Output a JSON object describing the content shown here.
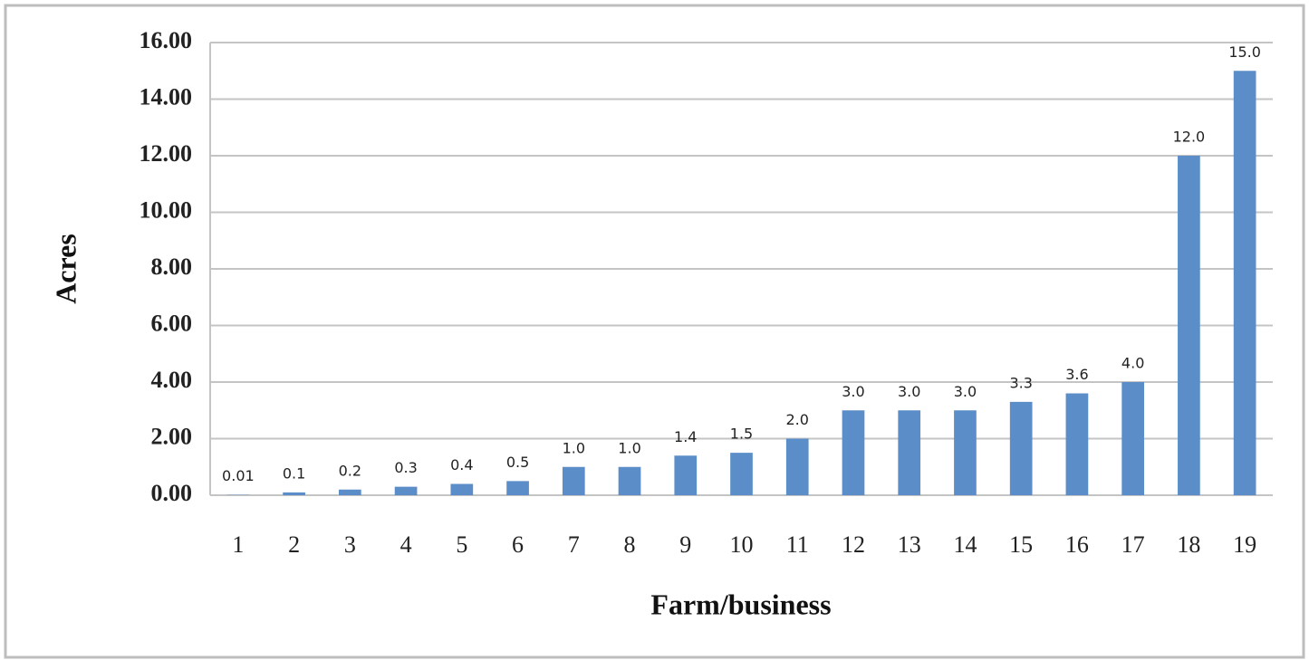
{
  "chart_data": {
    "type": "bar",
    "x_label": "Farm/business",
    "y_label": "Acres",
    "categories": [
      "1",
      "2",
      "3",
      "4",
      "5",
      "6",
      "7",
      "8",
      "9",
      "10",
      "11",
      "12",
      "13",
      "14",
      "15",
      "16",
      "17",
      "18",
      "19"
    ],
    "values": [
      0.01,
      0.1,
      0.2,
      0.3,
      0.4,
      0.5,
      1.0,
      1.0,
      1.4,
      1.5,
      2.0,
      3.0,
      3.0,
      3.0,
      3.3,
      3.6,
      4.0,
      12.0,
      15.0
    ],
    "value_labels": [
      "0.01",
      "0.1",
      "0.2",
      "0.3",
      "0.4",
      "0.5",
      "1.0",
      "1.0",
      "1.4",
      "1.5",
      "2.0",
      "3.0",
      "3.0",
      "3.0",
      "3.3",
      "3.6",
      "4.0",
      "12.0",
      "15.0"
    ],
    "color": "#5b8ec9",
    "ylim": [
      0,
      16
    ],
    "yticks": [
      {
        "value": 0,
        "label": "0.00"
      },
      {
        "value": 2,
        "label": "2.00"
      },
      {
        "value": 4,
        "label": "4.00"
      },
      {
        "value": 6,
        "label": "6.00"
      },
      {
        "value": 8,
        "label": "8.00"
      },
      {
        "value": 10,
        "label": "10.00"
      },
      {
        "value": 12,
        "label": "12.00"
      },
      {
        "value": 14,
        "label": "14.00"
      },
      {
        "value": 16,
        "label": "16.00"
      }
    ],
    "grid": true
  }
}
